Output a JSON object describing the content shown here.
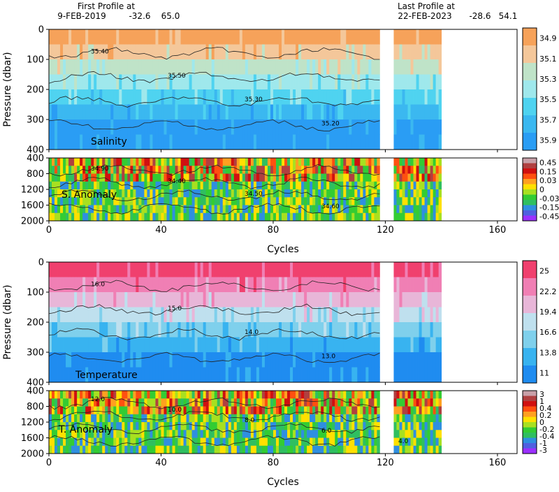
{
  "header": {
    "first_label": "First Profile at",
    "first_date": "9-FEB-2019",
    "first_lat": "-32.6",
    "first_lon": "65.0",
    "last_label": "Last Profile at",
    "last_date": "22-FEB-2023",
    "last_lat": "-28.6",
    "last_lon": "54.1"
  },
  "colors": {
    "salinity": [
      "#2a9df4",
      "#3bb8f0",
      "#4fd3f0",
      "#9fe8ec",
      "#bfe3c8",
      "#f4c79a",
      "#f6a25a"
    ],
    "temperature": [
      "#1f8cf0",
      "#38b3f0",
      "#7fd0ec",
      "#bfe0ee",
      "#e8b6d8",
      "#f07fb4",
      "#f0406e"
    ],
    "anomaly": [
      "#9b30ff",
      "#5060e0",
      "#2f8fe0",
      "#2fbf60",
      "#33cc33",
      "#a8e020",
      "#ffe000",
      "#ffa020",
      "#ff5010",
      "#d01010",
      "#b04040",
      "#c8a0a8"
    ]
  },
  "chart_data": [
    {
      "type": "heatmap",
      "xlabel": "Cycles",
      "ylabel": "Pressure (dbar)",
      "xlim": [
        0,
        167
      ],
      "ylim": [
        400,
        0
      ],
      "xticks": [
        0,
        40,
        80,
        120,
        160
      ],
      "yticks": [
        0,
        100,
        200,
        300,
        400
      ],
      "label": "Salinity",
      "colorbar": [
        "34.9",
        "35.1",
        "35.3",
        "35.5",
        "35.7",
        "35.9"
      ],
      "contour_labels": [
        "35.40",
        "35.50",
        "35.30",
        "35.20"
      ]
    },
    {
      "type": "heatmap",
      "label": "S. Anomaly",
      "xlim": [
        0,
        167
      ],
      "ylim": [
        2000,
        400
      ],
      "yticks": [
        400,
        800,
        1200,
        1600,
        2000
      ],
      "colorbar": [
        "0.45",
        "0.15",
        "0.03",
        "0",
        "-0.03",
        "-0.15",
        "-0.45"
      ],
      "contour_labels": [
        "34.90",
        "34.40",
        "34.50",
        "34.60"
      ]
    },
    {
      "type": "heatmap",
      "xlabel": "Cycles",
      "ylabel": "Pressure (dbar)",
      "xlim": [
        0,
        167
      ],
      "ylim": [
        400,
        0
      ],
      "xticks": [
        0,
        40,
        80,
        120,
        160
      ],
      "yticks": [
        0,
        100,
        200,
        300,
        400
      ],
      "label": "Temperature",
      "colorbar": [
        "25",
        "22.2",
        "19.4",
        "16.6",
        "13.8",
        "11"
      ],
      "contour_labels": [
        "16.0",
        "15.0",
        "14.0",
        "13.0"
      ]
    },
    {
      "type": "heatmap",
      "label": "T. Anomaly",
      "xlim": [
        0,
        167
      ],
      "ylim": [
        2000,
        400
      ],
      "yticks": [
        400,
        800,
        1200,
        1600,
        2000
      ],
      "colorbar": [
        "3",
        "1",
        "0.4",
        "0.2",
        "0",
        "-0.2",
        "-0.4",
        "-1",
        "-3"
      ],
      "contour_labels": [
        "12.0",
        "10.0",
        "8.0",
        "6.0",
        "4.0"
      ]
    }
  ]
}
